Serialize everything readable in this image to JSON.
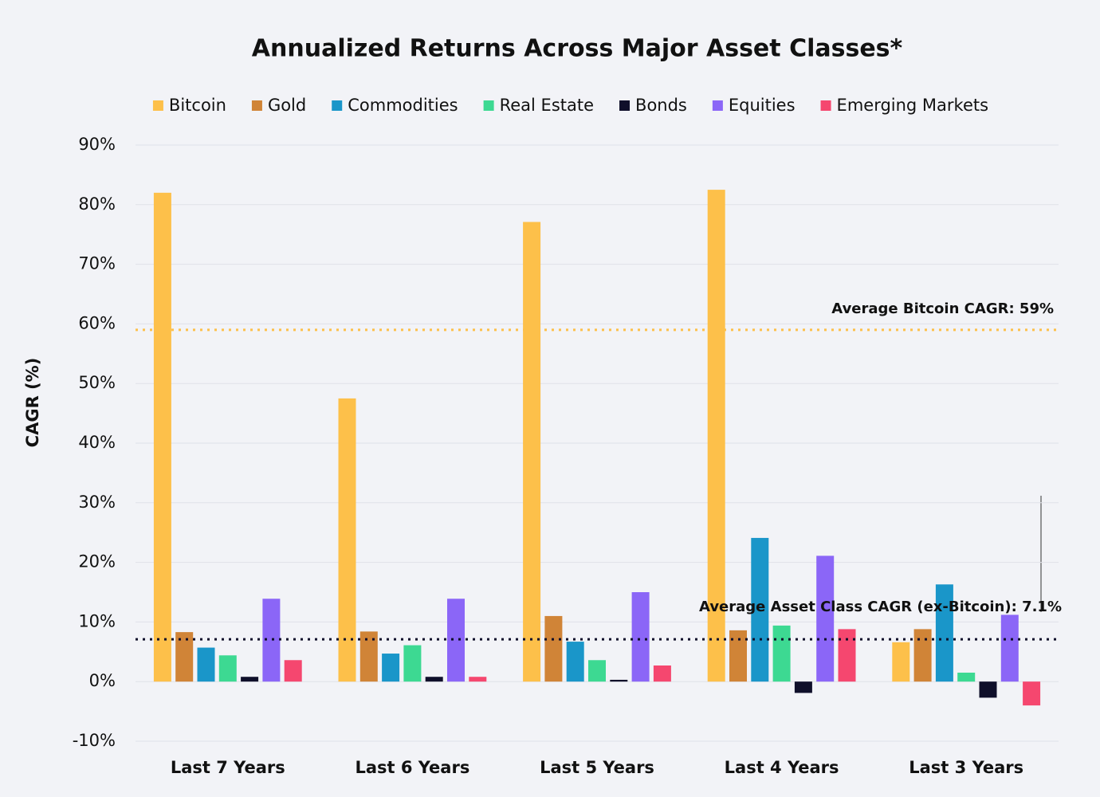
{
  "chart_data": {
    "type": "bar",
    "title": "Annualized Returns Across Major Asset Classes*",
    "y_label": "CAGR (%)",
    "categories": [
      "Last 7 Years",
      "Last 6 Years",
      "Last 5 Years",
      "Last 4 Years",
      "Last 3 Years"
    ],
    "series": [
      {
        "name": "Bitcoin",
        "color": "#fdc04a",
        "values": [
          82.0,
          47.5,
          77.1,
          82.5,
          6.6
        ]
      },
      {
        "name": "Gold",
        "color": "#d08437",
        "values": [
          8.3,
          8.4,
          11.0,
          8.6,
          8.8
        ]
      },
      {
        "name": "Commodities",
        "color": "#1a96c9",
        "values": [
          5.7,
          4.7,
          6.7,
          24.1,
          16.3
        ]
      },
      {
        "name": "Real Estate",
        "color": "#3dd992",
        "values": [
          4.4,
          6.1,
          3.6,
          9.4,
          1.5
        ]
      },
      {
        "name": "Bonds",
        "color": "#0f0f2a",
        "values": [
          0.8,
          0.8,
          0.3,
          -1.9,
          -2.7
        ]
      },
      {
        "name": "Equities",
        "color": "#8b66f7",
        "values": [
          13.9,
          13.9,
          15.0,
          21.1,
          11.2
        ]
      },
      {
        "name": "Emerging Markets",
        "color": "#f5476f",
        "values": [
          3.6,
          0.8,
          2.7,
          8.8,
          -4.0
        ]
      }
    ],
    "reference_lines": [
      {
        "label": "Average Bitcoin CAGR: 59%",
        "value": 59,
        "color": "#fdc04a"
      },
      {
        "label": "Average Asset Class CAGR (ex-Bitcoin): 7.1%",
        "value": 7.1,
        "color": "#0f0f2a"
      }
    ],
    "ylim": [
      -10,
      90
    ],
    "yticks": [
      {
        "value": -10,
        "label": "-10%"
      },
      {
        "value": 0,
        "label": "0%"
      },
      {
        "value": 10,
        "label": "10%"
      },
      {
        "value": 20,
        "label": "20%"
      },
      {
        "value": 30,
        "label": "30%"
      },
      {
        "value": 40,
        "label": "40%"
      },
      {
        "value": 50,
        "label": "50%"
      },
      {
        "value": 60,
        "label": "60%"
      },
      {
        "value": 70,
        "label": "70%"
      },
      {
        "value": 80,
        "label": "80%"
      },
      {
        "value": 90,
        "label": "90%"
      }
    ],
    "grid": true
  }
}
